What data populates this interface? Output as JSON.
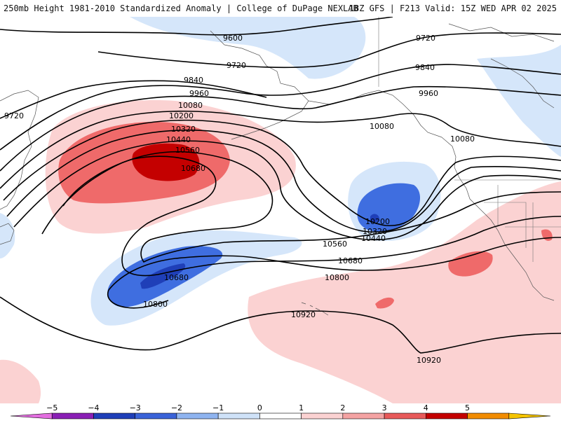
{
  "header": {
    "title_left": "250mb Height 1981-2010 Standardized Anomaly | College of DuPage NEXLAB",
    "title_right": "18Z GFS | F213 Valid: 15Z WED APR 02 2025"
  },
  "contour_labels": [
    "9600",
    "9720",
    "9720",
    "9720",
    "9840",
    "9840",
    "9960",
    "9960",
    "10080",
    "10080",
    "10080",
    "10200",
    "10200",
    "10320",
    "10320",
    "10440",
    "10440",
    "10560",
    "10560",
    "10680",
    "10680",
    "10680",
    "10800",
    "10800",
    "10920",
    "10920"
  ],
  "colorbar": {
    "tick_labels": [
      "−5",
      "−4",
      "−3",
      "−2",
      "−1",
      "0",
      "1",
      "2",
      "3",
      "4",
      "5"
    ],
    "colors": [
      "#e36ee0",
      "#8a1fb5",
      "#1f3fb8",
      "#3a63d8",
      "#8fb4f0",
      "#cfe2f8",
      "#ffffff",
      "#fbd2d2",
      "#f4a3a3",
      "#e85a5a",
      "#c40000",
      "#f28c00",
      "#f5c400"
    ]
  }
}
